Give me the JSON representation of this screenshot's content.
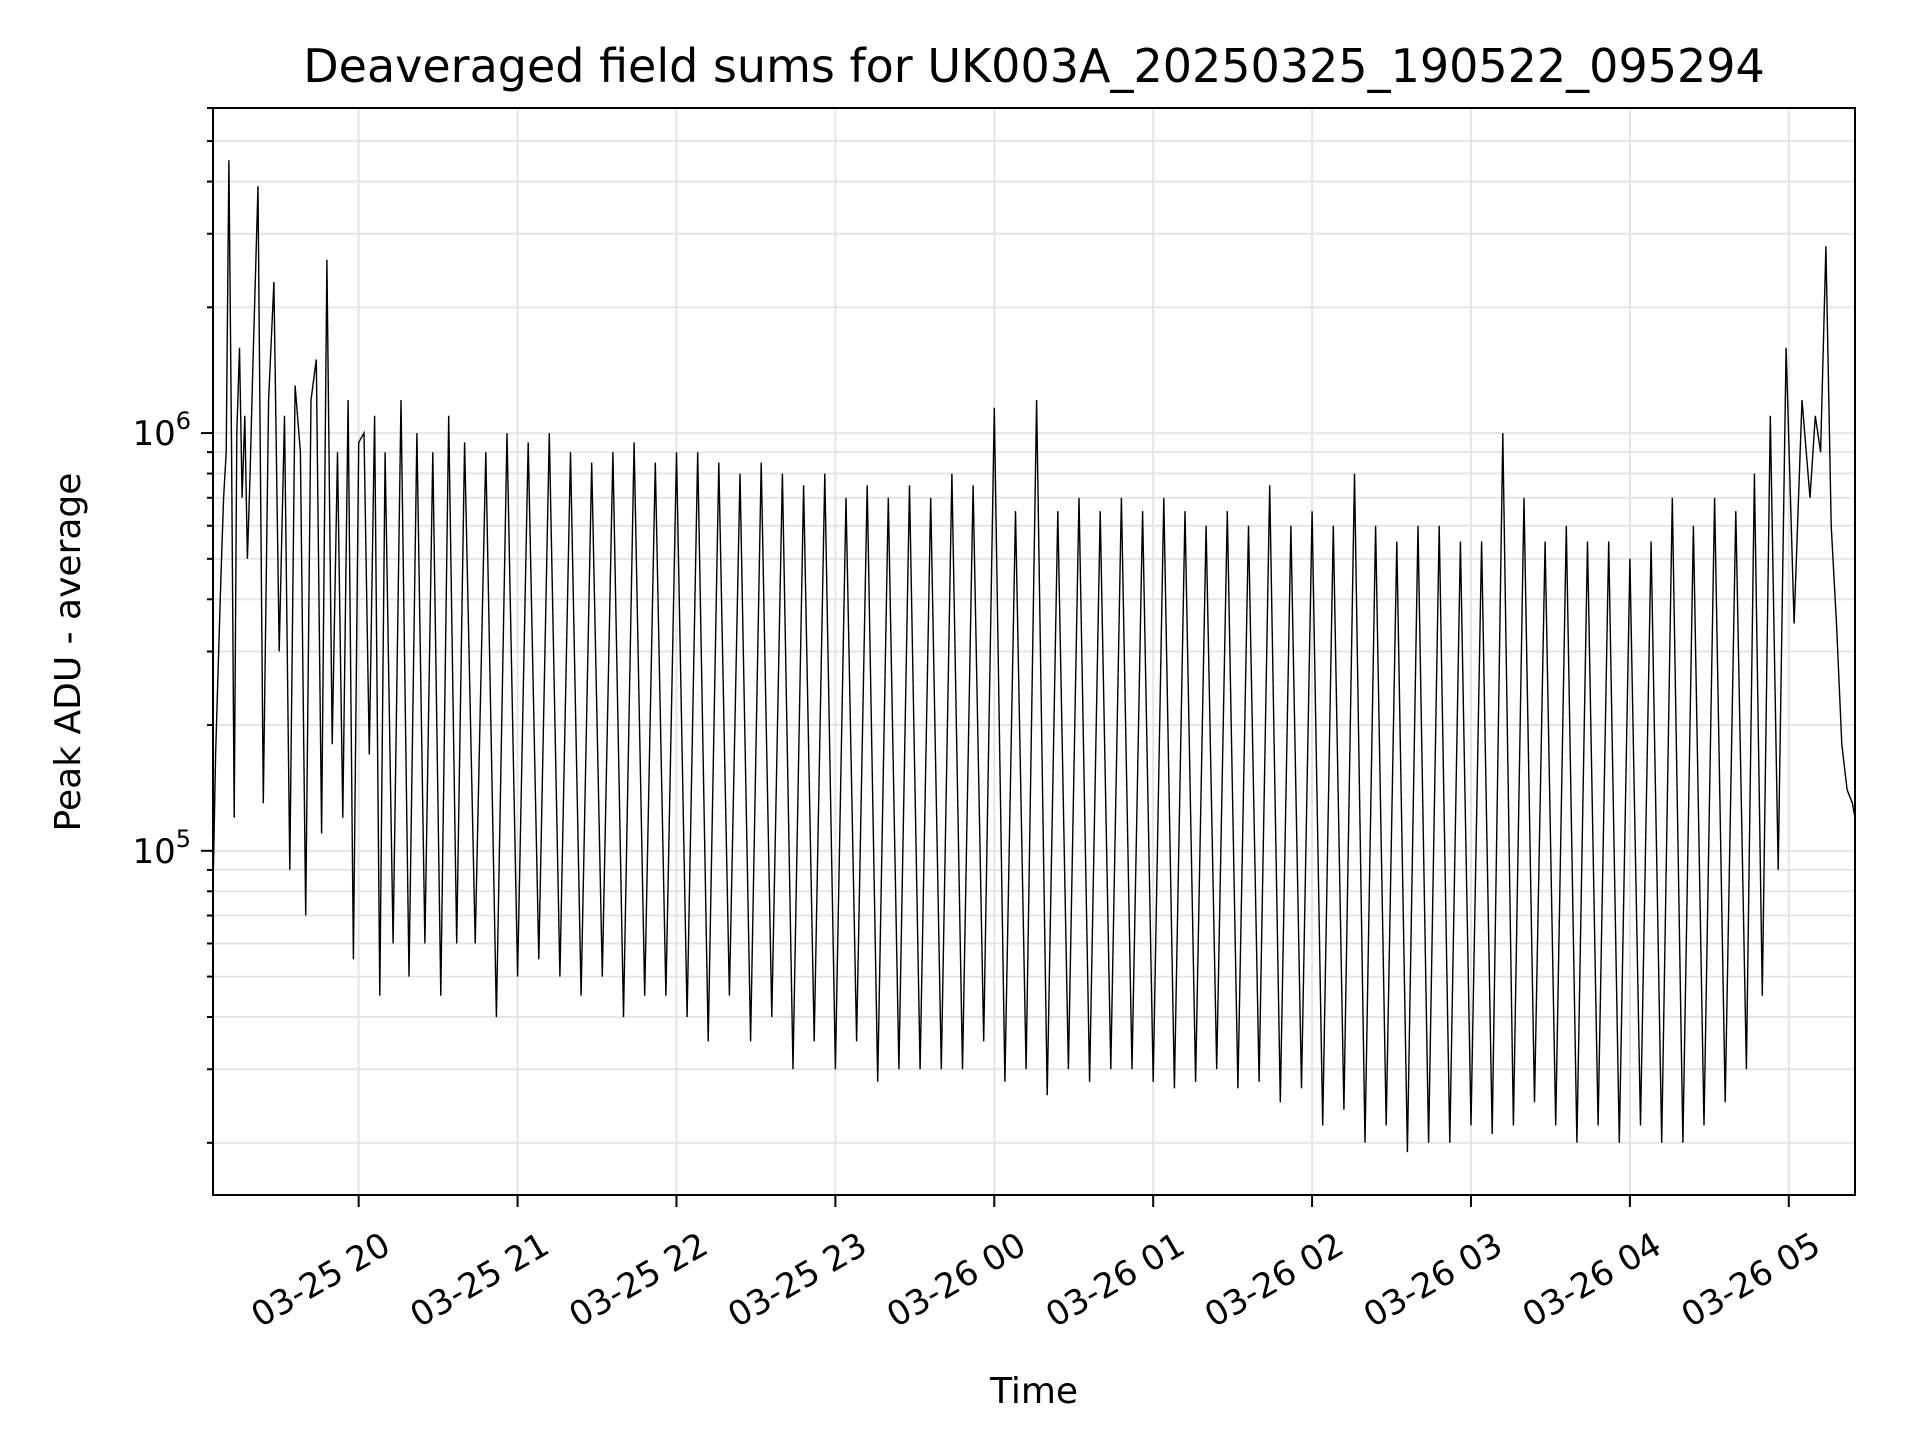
{
  "chart_data": {
    "type": "line",
    "title": "Deaveraged field sums for UK003A_20250325_190522_095294",
    "xlabel": "Time",
    "ylabel": "Peak ADU - average",
    "y_scale": "log",
    "x_range": [
      "2025-03-25 19:05",
      "2025-03-26 05:25"
    ],
    "ylim": [
      15000,
      6000000
    ],
    "grid": true,
    "x_ticks": [
      {
        "value": "2025-03-25 20:00",
        "label": "03-25 20"
      },
      {
        "value": "2025-03-25 21:00",
        "label": "03-25 21"
      },
      {
        "value": "2025-03-25 22:00",
        "label": "03-25 22"
      },
      {
        "value": "2025-03-25 23:00",
        "label": "03-25 23"
      },
      {
        "value": "2025-03-26 00:00",
        "label": "03-26 00"
      },
      {
        "value": "2025-03-26 01:00",
        "label": "03-26 01"
      },
      {
        "value": "2025-03-26 02:00",
        "label": "03-26 02"
      },
      {
        "value": "2025-03-26 03:00",
        "label": "03-26 03"
      },
      {
        "value": "2025-03-26 04:00",
        "label": "03-26 04"
      },
      {
        "value": "2025-03-26 05:00",
        "label": "03-26 05"
      }
    ],
    "y_ticks": [
      {
        "value": 100000,
        "base": "10",
        "exp": "5"
      },
      {
        "value": 1000000,
        "base": "10",
        "exp": "6"
      }
    ],
    "line_color": "#000000",
    "series": [
      {
        "x": [
          "2025-03-25 19:05",
          "2025-03-25 19:06",
          "2025-03-25 19:07",
          "2025-03-25 19:08",
          "2025-03-25 19:09",
          "2025-03-25 19:10",
          "2025-03-25 19:11",
          "2025-03-25 19:12",
          "2025-03-25 19:13",
          "2025-03-25 19:14",
          "2025-03-25 19:15",
          "2025-03-25 19:16",
          "2025-03-25 19:17",
          "2025-03-25 19:18",
          "2025-03-25 19:19",
          "2025-03-25 19:20",
          "2025-03-25 19:22",
          "2025-03-25 19:24",
          "2025-03-25 19:26",
          "2025-03-25 19:28",
          "2025-03-25 19:30",
          "2025-03-25 19:32",
          "2025-03-25 19:34",
          "2025-03-25 19:36",
          "2025-03-25 19:38",
          "2025-03-25 19:40",
          "2025-03-25 19:42",
          "2025-03-25 19:44",
          "2025-03-25 19:46",
          "2025-03-25 19:48",
          "2025-03-25 19:50",
          "2025-03-25 19:52",
          "2025-03-25 19:54",
          "2025-03-25 19:56",
          "2025-03-25 19:58",
          "2025-03-25 20:00",
          "2025-03-25 20:02",
          "2025-03-25 20:04",
          "2025-03-25 20:06",
          "2025-03-25 20:08",
          "2025-03-25 20:10",
          "2025-03-25 20:13",
          "2025-03-25 20:16",
          "2025-03-25 20:19",
          "2025-03-25 20:22",
          "2025-03-25 20:25",
          "2025-03-25 20:28",
          "2025-03-25 20:31",
          "2025-03-25 20:34",
          "2025-03-25 20:37",
          "2025-03-25 20:40",
          "2025-03-25 20:44",
          "2025-03-25 20:48",
          "2025-03-25 20:52",
          "2025-03-25 20:56",
          "2025-03-25 21:00",
          "2025-03-25 21:04",
          "2025-03-25 21:08",
          "2025-03-25 21:12",
          "2025-03-25 21:16",
          "2025-03-25 21:20",
          "2025-03-25 21:24",
          "2025-03-25 21:28",
          "2025-03-25 21:32",
          "2025-03-25 21:36",
          "2025-03-25 21:40",
          "2025-03-25 21:44",
          "2025-03-25 21:48",
          "2025-03-25 21:52",
          "2025-03-25 21:56",
          "2025-03-25 22:00",
          "2025-03-25 22:04",
          "2025-03-25 22:08",
          "2025-03-25 22:12",
          "2025-03-25 22:16",
          "2025-03-25 22:20",
          "2025-03-25 22:24",
          "2025-03-25 22:28",
          "2025-03-25 22:32",
          "2025-03-25 22:36",
          "2025-03-25 22:40",
          "2025-03-25 22:44",
          "2025-03-25 22:48",
          "2025-03-25 22:52",
          "2025-03-25 22:56",
          "2025-03-25 23:00",
          "2025-03-25 23:04",
          "2025-03-25 23:08",
          "2025-03-25 23:12",
          "2025-03-25 23:16",
          "2025-03-25 23:20",
          "2025-03-25 23:24",
          "2025-03-25 23:28",
          "2025-03-25 23:32",
          "2025-03-25 23:36",
          "2025-03-25 23:40",
          "2025-03-25 23:44",
          "2025-03-25 23:48",
          "2025-03-25 23:52",
          "2025-03-25 23:56",
          "2025-03-26 00:00",
          "2025-03-26 00:04",
          "2025-03-26 00:08",
          "2025-03-26 00:12",
          "2025-03-26 00:16",
          "2025-03-26 00:20",
          "2025-03-26 00:24",
          "2025-03-26 00:28",
          "2025-03-26 00:32",
          "2025-03-26 00:36",
          "2025-03-26 00:40",
          "2025-03-26 00:44",
          "2025-03-26 00:48",
          "2025-03-26 00:52",
          "2025-03-26 00:56",
          "2025-03-26 01:00",
          "2025-03-26 01:04",
          "2025-03-26 01:08",
          "2025-03-26 01:12",
          "2025-03-26 01:16",
          "2025-03-26 01:20",
          "2025-03-26 01:24",
          "2025-03-26 01:28",
          "2025-03-26 01:32",
          "2025-03-26 01:36",
          "2025-03-26 01:40",
          "2025-03-26 01:44",
          "2025-03-26 01:48",
          "2025-03-26 01:52",
          "2025-03-26 01:56",
          "2025-03-26 02:00",
          "2025-03-26 02:04",
          "2025-03-26 02:08",
          "2025-03-26 02:12",
          "2025-03-26 02:16",
          "2025-03-26 02:20",
          "2025-03-26 02:24",
          "2025-03-26 02:28",
          "2025-03-26 02:32",
          "2025-03-26 02:36",
          "2025-03-26 02:40",
          "2025-03-26 02:44",
          "2025-03-26 02:48",
          "2025-03-26 02:52",
          "2025-03-26 02:56",
          "2025-03-26 03:00",
          "2025-03-26 03:04",
          "2025-03-26 03:08",
          "2025-03-26 03:12",
          "2025-03-26 03:16",
          "2025-03-26 03:20",
          "2025-03-26 03:24",
          "2025-03-26 03:28",
          "2025-03-26 03:32",
          "2025-03-26 03:36",
          "2025-03-26 03:40",
          "2025-03-26 03:44",
          "2025-03-26 03:48",
          "2025-03-26 03:52",
          "2025-03-26 03:56",
          "2025-03-26 04:00",
          "2025-03-26 04:04",
          "2025-03-26 04:08",
          "2025-03-26 04:12",
          "2025-03-26 04:16",
          "2025-03-26 04:20",
          "2025-03-26 04:24",
          "2025-03-26 04:28",
          "2025-03-26 04:32",
          "2025-03-26 04:36",
          "2025-03-26 04:40",
          "2025-03-26 04:44",
          "2025-03-26 04:47",
          "2025-03-26 04:50",
          "2025-03-26 04:53",
          "2025-03-26 04:56",
          "2025-03-26 04:59",
          "2025-03-26 05:02",
          "2025-03-26 05:05",
          "2025-03-26 05:08",
          "2025-03-26 05:10",
          "2025-03-26 05:12",
          "2025-03-26 05:14",
          "2025-03-26 05:16",
          "2025-03-26 05:18",
          "2025-03-26 05:20",
          "2025-03-26 05:22",
          "2025-03-26 05:24",
          "2025-03-26 05:25"
        ],
        "y": [
          80000,
          170000,
          280000,
          450000,
          700000,
          900000,
          4500000,
          950000,
          120000,
          1000000,
          1600000,
          700000,
          1100000,
          500000,
          800000,
          1400000,
          3900000,
          130000,
          1200000,
          2300000,
          300000,
          1100000,
          90000,
          1300000,
          900000,
          70000,
          1200000,
          1500000,
          110000,
          2600000,
          180000,
          900000,
          120000,
          1200000,
          55000,
          950000,
          1000000,
          170000,
          1100000,
          45000,
          900000,
          60000,
          1200000,
          50000,
          1000000,
          60000,
          900000,
          45000,
          1100000,
          60000,
          950000,
          60000,
          900000,
          40000,
          1000000,
          50000,
          950000,
          55000,
          1000000,
          50000,
          900000,
          45000,
          850000,
          50000,
          900000,
          40000,
          950000,
          45000,
          850000,
          45000,
          900000,
          40000,
          900000,
          35000,
          850000,
          45000,
          800000,
          35000,
          850000,
          40000,
          800000,
          30000,
          750000,
          35000,
          800000,
          30000,
          700000,
          35000,
          750000,
          28000,
          700000,
          30000,
          750000,
          30000,
          700000,
          30000,
          800000,
          30000,
          750000,
          35000,
          1150000,
          28000,
          650000,
          30000,
          1200000,
          26000,
          650000,
          30000,
          700000,
          28000,
          650000,
          30000,
          700000,
          30000,
          650000,
          28000,
          700000,
          27000,
          650000,
          28000,
          600000,
          30000,
          650000,
          27000,
          600000,
          28000,
          750000,
          25000,
          600000,
          27000,
          650000,
          22000,
          600000,
          24000,
          800000,
          20000,
          600000,
          22000,
          550000,
          19000,
          600000,
          20000,
          600000,
          20000,
          550000,
          22000,
          550000,
          21000,
          1000000,
          22000,
          700000,
          25000,
          550000,
          22000,
          600000,
          20000,
          550000,
          22000,
          550000,
          20000,
          500000,
          22000,
          550000,
          20000,
          700000,
          20000,
          600000,
          22000,
          700000,
          25000,
          650000,
          30000,
          800000,
          45000,
          1100000,
          90000,
          1600000,
          350000,
          1200000,
          700000,
          1100000,
          900000,
          2800000,
          600000,
          350000,
          180000,
          140000,
          130000,
          120000
        ]
      }
    ]
  }
}
